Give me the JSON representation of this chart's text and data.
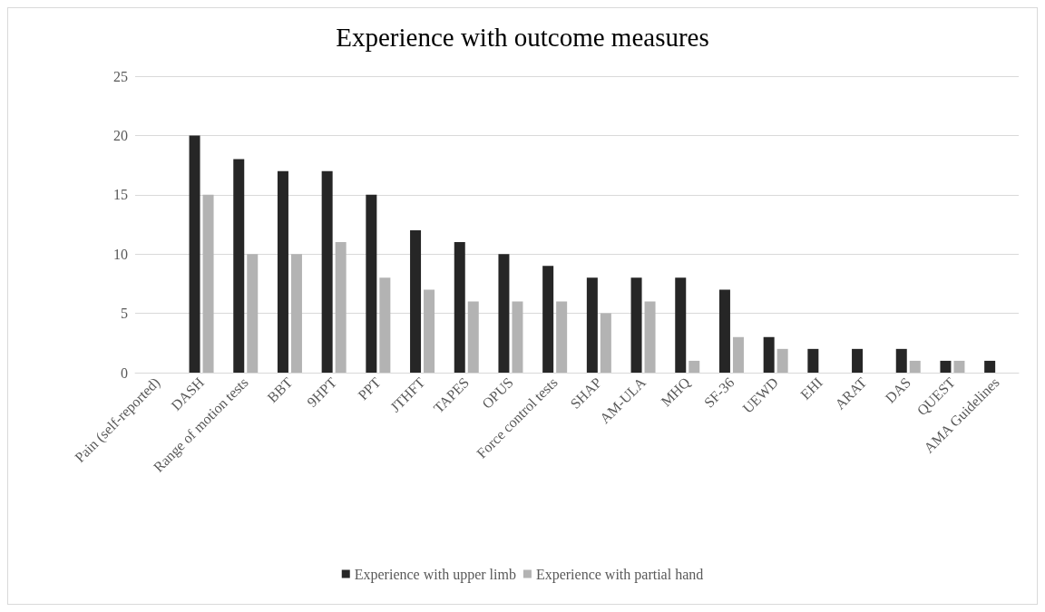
{
  "chart_data": {
    "type": "bar",
    "title": "Experience with outcome measures",
    "categories": [
      "Pain (self-reported)",
      "DASH",
      "Range of motion tests",
      "BBT",
      "9HPT",
      "PPT",
      "JTHFT",
      "TAPES",
      "OPUS",
      "Force control tests",
      "SHAP",
      "AM-ULA",
      "MHQ",
      "SF-36",
      "UEWD",
      "EHI",
      "ARAT",
      "DAS",
      "QUEST",
      "AMA Guidelines"
    ],
    "series": [
      {
        "name": "Experience with upper limb",
        "color": "#262626",
        "values": [
          0,
          20,
          18,
          17,
          17,
          15,
          12,
          11,
          10,
          9,
          8,
          8,
          8,
          7,
          3,
          2,
          2,
          2,
          1,
          1
        ]
      },
      {
        "name": "Experience with partial hand",
        "color": "#b3b3b3",
        "values": [
          0,
          15,
          10,
          10,
          11,
          8,
          7,
          6,
          6,
          6,
          5,
          6,
          1,
          3,
          2,
          0,
          0,
          1,
          1,
          0
        ]
      }
    ],
    "ylim": [
      0,
      25
    ],
    "yticks": [
      0,
      5,
      10,
      15,
      20,
      25
    ],
    "grid": "y",
    "legend": "bottom"
  }
}
